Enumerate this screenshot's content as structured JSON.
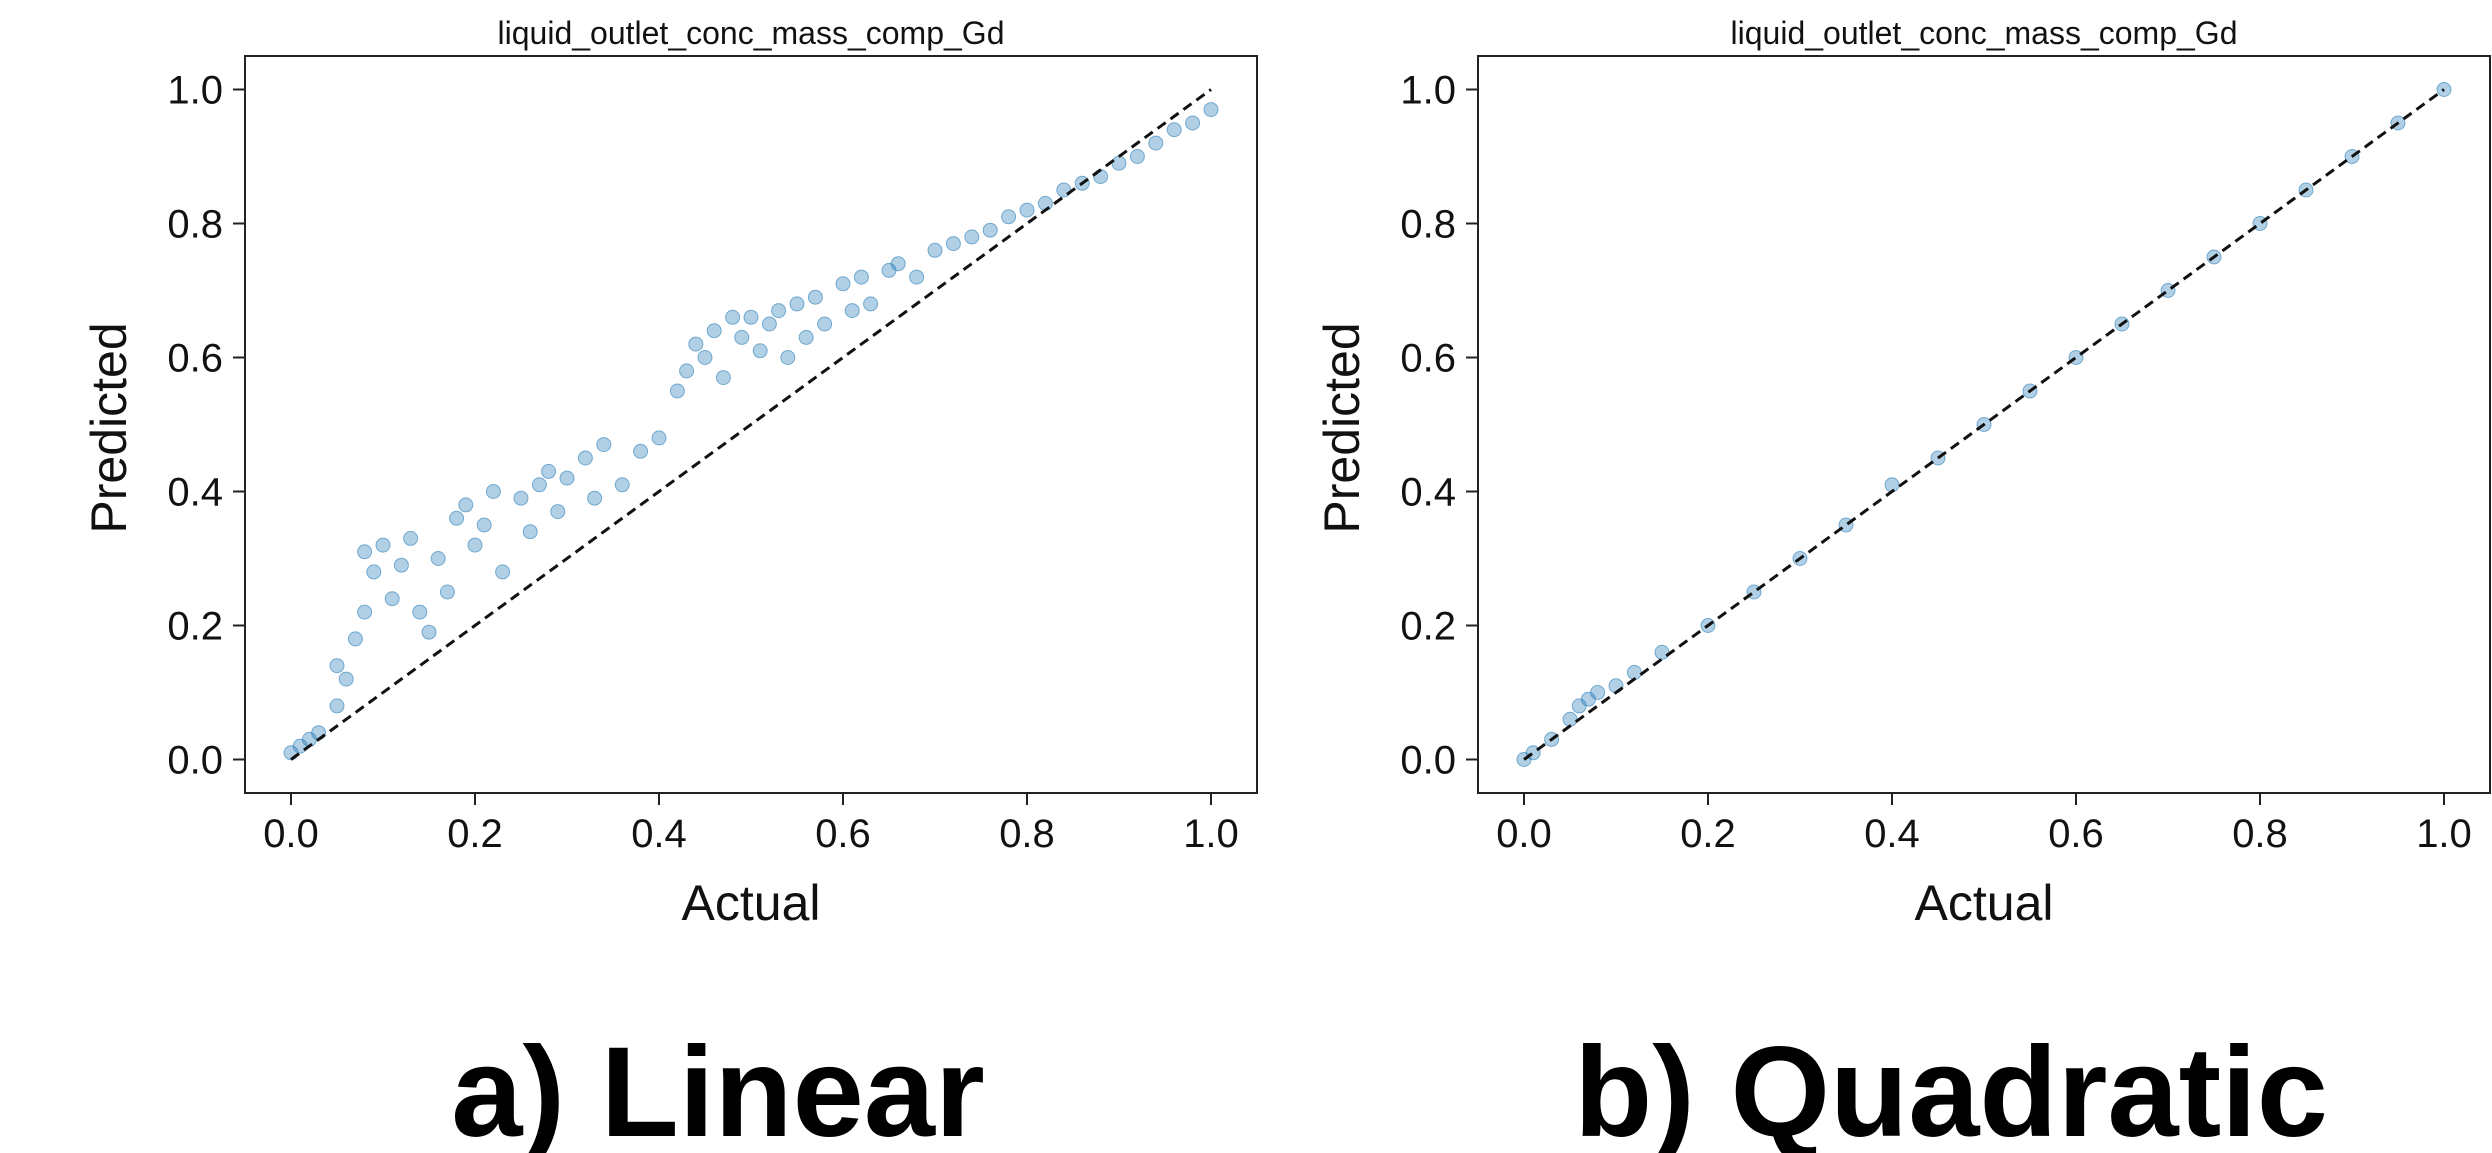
{
  "chart_data": [
    {
      "type": "scatter",
      "title": "liquid_outlet_conc_mass_comp_Gd",
      "caption": "a) Linear",
      "xlabel": "Actual",
      "ylabel": "Predicted",
      "xlim": [
        -0.05,
        1.05
      ],
      "ylim": [
        -0.05,
        1.05
      ],
      "xticks": [
        "0.0",
        "0.2",
        "0.4",
        "0.6",
        "0.8",
        "1.0"
      ],
      "yticks": [
        "0.0",
        "0.2",
        "0.4",
        "0.6",
        "0.8",
        "1.0"
      ],
      "grid": false,
      "reference_line": {
        "from": [
          0,
          0
        ],
        "to": [
          1,
          1
        ],
        "style": "dashed"
      },
      "marker_color": "#1f77b4",
      "marker_alpha": 0.35,
      "n_points": 750,
      "points": [
        [
          0.0,
          0.01
        ],
        [
          0.01,
          0.02
        ],
        [
          0.02,
          0.03
        ],
        [
          0.03,
          0.04
        ],
        [
          0.05,
          0.08
        ],
        [
          0.05,
          0.14
        ],
        [
          0.06,
          0.12
        ],
        [
          0.07,
          0.18
        ],
        [
          0.08,
          0.22
        ],
        [
          0.08,
          0.31
        ],
        [
          0.09,
          0.28
        ],
        [
          0.1,
          0.32
        ],
        [
          0.11,
          0.24
        ],
        [
          0.12,
          0.29
        ],
        [
          0.13,
          0.33
        ],
        [
          0.14,
          0.22
        ],
        [
          0.15,
          0.19
        ],
        [
          0.16,
          0.3
        ],
        [
          0.17,
          0.25
        ],
        [
          0.18,
          0.36
        ],
        [
          0.19,
          0.38
        ],
        [
          0.2,
          0.32
        ],
        [
          0.21,
          0.35
        ],
        [
          0.22,
          0.4
        ],
        [
          0.23,
          0.28
        ],
        [
          0.25,
          0.39
        ],
        [
          0.26,
          0.34
        ],
        [
          0.27,
          0.41
        ],
        [
          0.28,
          0.43
        ],
        [
          0.29,
          0.37
        ],
        [
          0.3,
          0.42
        ],
        [
          0.32,
          0.45
        ],
        [
          0.33,
          0.39
        ],
        [
          0.34,
          0.47
        ],
        [
          0.36,
          0.41
        ],
        [
          0.38,
          0.46
        ],
        [
          0.4,
          0.48
        ],
        [
          0.42,
          0.55
        ],
        [
          0.43,
          0.58
        ],
        [
          0.44,
          0.62
        ],
        [
          0.45,
          0.6
        ],
        [
          0.46,
          0.64
        ],
        [
          0.47,
          0.57
        ],
        [
          0.48,
          0.66
        ],
        [
          0.49,
          0.63
        ],
        [
          0.5,
          0.66
        ],
        [
          0.51,
          0.61
        ],
        [
          0.52,
          0.65
        ],
        [
          0.53,
          0.67
        ],
        [
          0.54,
          0.6
        ],
        [
          0.55,
          0.68
        ],
        [
          0.56,
          0.63
        ],
        [
          0.57,
          0.69
        ],
        [
          0.58,
          0.65
        ],
        [
          0.6,
          0.71
        ],
        [
          0.61,
          0.67
        ],
        [
          0.62,
          0.72
        ],
        [
          0.63,
          0.68
        ],
        [
          0.65,
          0.73
        ],
        [
          0.66,
          0.74
        ],
        [
          0.68,
          0.72
        ],
        [
          0.7,
          0.76
        ],
        [
          0.72,
          0.77
        ],
        [
          0.74,
          0.78
        ],
        [
          0.76,
          0.79
        ],
        [
          0.78,
          0.81
        ],
        [
          0.8,
          0.82
        ],
        [
          0.82,
          0.83
        ],
        [
          0.84,
          0.85
        ],
        [
          0.86,
          0.86
        ],
        [
          0.88,
          0.87
        ],
        [
          0.9,
          0.89
        ],
        [
          0.92,
          0.9
        ],
        [
          0.94,
          0.92
        ],
        [
          0.96,
          0.94
        ],
        [
          0.98,
          0.95
        ],
        [
          1.0,
          0.97
        ]
      ]
    },
    {
      "type": "scatter",
      "title": "liquid_outlet_conc_mass_comp_Gd",
      "caption": "b) Quadratic",
      "xlabel": "Actual",
      "ylabel": "Predicted",
      "xlim": [
        -0.05,
        1.05
      ],
      "ylim": [
        -0.05,
        1.05
      ],
      "xticks": [
        "0.0",
        "0.2",
        "0.4",
        "0.6",
        "0.8",
        "1.0"
      ],
      "yticks": [
        "0.0",
        "0.2",
        "0.4",
        "0.6",
        "0.8",
        "1.0"
      ],
      "grid": false,
      "reference_line": {
        "from": [
          0,
          0
        ],
        "to": [
          1,
          1
        ],
        "style": "dashed"
      },
      "marker_color": "#1f77b4",
      "marker_alpha": 0.35,
      "n_points": 750,
      "points": [
        [
          0.0,
          0.0
        ],
        [
          0.01,
          0.01
        ],
        [
          0.03,
          0.03
        ],
        [
          0.05,
          0.06
        ],
        [
          0.06,
          0.08
        ],
        [
          0.07,
          0.09
        ],
        [
          0.08,
          0.1
        ],
        [
          0.1,
          0.11
        ],
        [
          0.12,
          0.13
        ],
        [
          0.15,
          0.16
        ],
        [
          0.2,
          0.2
        ],
        [
          0.25,
          0.25
        ],
        [
          0.3,
          0.3
        ],
        [
          0.35,
          0.35
        ],
        [
          0.4,
          0.41
        ],
        [
          0.45,
          0.45
        ],
        [
          0.5,
          0.5
        ],
        [
          0.55,
          0.55
        ],
        [
          0.6,
          0.6
        ],
        [
          0.65,
          0.65
        ],
        [
          0.7,
          0.7
        ],
        [
          0.75,
          0.75
        ],
        [
          0.8,
          0.8
        ],
        [
          0.85,
          0.85
        ],
        [
          0.9,
          0.9
        ],
        [
          0.95,
          0.95
        ],
        [
          1.0,
          1.0
        ]
      ]
    }
  ]
}
